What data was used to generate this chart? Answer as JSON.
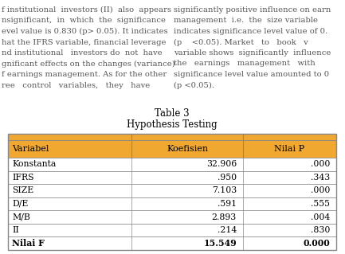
{
  "title_line1": "Table 3",
  "title_line2": "Hypothesis Testing",
  "header_col1": "Variabel",
  "header_col2": "Koefisien",
  "header_col3": "Nilai P",
  "rows": [
    [
      "Konstanta",
      "32.906",
      ".000",
      false
    ],
    [
      "IFRS",
      ".950",
      ".343",
      false
    ],
    [
      "SIZE",
      "7.103",
      ".000",
      false
    ],
    [
      "D/E",
      ".591",
      ".555",
      false
    ],
    [
      "M/B",
      "2.893",
      ".004",
      false
    ],
    [
      "II",
      ".214",
      ".830",
      false
    ],
    [
      "Nilai F",
      "15.549",
      "0.000",
      true
    ]
  ],
  "bg_text_left": [
    "f institutional  investors (II)  also  appears",
    "nsignificant,  in  which  the  significance",
    "evel value is 0.830 (p> 0.05). It indicates",
    "hat the IFRS variable, financial leverage",
    "nd institutional   investors do  not  have",
    "gnificant effects on the changes (variance)",
    "f earnings management. As for the other",
    "ree   control   variables,   they   have"
  ],
  "bg_text_right": [
    "significantly positive influence on earn",
    "management  i.e.  the  size variable",
    "indicates significance level value of 0.",
    "(p    <0.05). Market   to   book   v",
    "variable shows  significantly  influence",
    "the   earnings   management   with",
    "significance level value amounted to 0",
    "(p <0.05)."
  ],
  "header_bg": "#F0A830",
  "border_color": "#888888",
  "text_color": "#000000",
  "bg_text_color": "#555555",
  "background": "#ffffff",
  "title_fontsize": 8.5,
  "header_fontsize": 8,
  "cell_fontsize": 7.8,
  "bg_text_fontsize": 7.2
}
